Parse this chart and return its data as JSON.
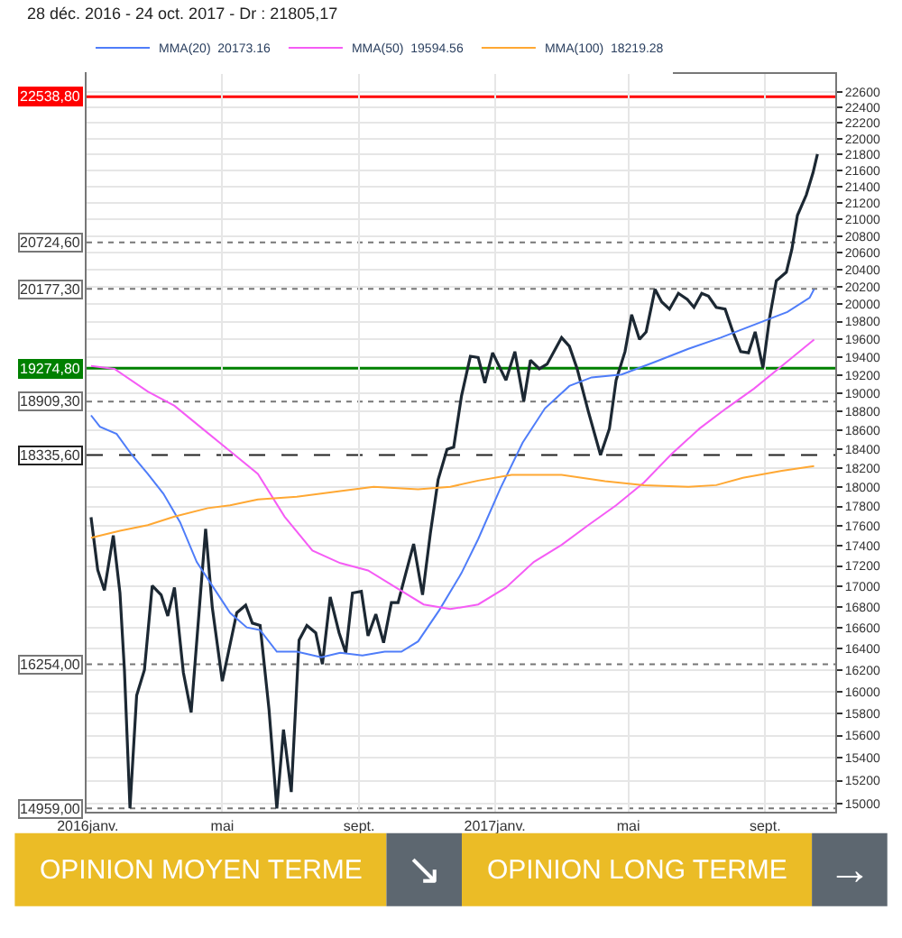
{
  "chart_data": {
    "type": "line",
    "title": "28 déc. 2016 - 24 oct. 2017 - Dr : 21805,17",
    "log": "y",
    "grid": true,
    "legend": "top left",
    "marker": "none",
    "line_style": "solid",
    "xlim": [
      "2015-12-31",
      "2017-11-03"
    ],
    "xticks": [
      {
        "value": "2016-01-01",
        "label": "2016janv."
      },
      {
        "value": "2016-05-01",
        "label": "mai"
      },
      {
        "value": "2016-09-01",
        "label": "sept."
      },
      {
        "value": "2017-01-01",
        "label": "2017janv."
      },
      {
        "value": "2017-05-01",
        "label": "mai"
      },
      {
        "value": "2017-09-01",
        "label": "sept."
      }
    ],
    "ylim": [
      14930,
      22835
    ],
    "yticks": [
      15000,
      15200,
      15400,
      15600,
      15800,
      16000,
      16200,
      16400,
      16600,
      16800,
      17000,
      17200,
      17400,
      17600,
      17800,
      18000,
      18200,
      18400,
      18600,
      18800,
      19000,
      19200,
      19400,
      19600,
      19800,
      20000,
      20200,
      20400,
      20600,
      20800,
      21000,
      21200,
      21400,
      21600,
      21800,
      22000,
      22200,
      22400,
      22600
    ],
    "series": [
      {
        "color": "#1c2833",
        "x": [
          "2016-01-04",
          "2016-01-10",
          "2016-01-16",
          "2016-01-24",
          "2016-01-30",
          "2016-02-03",
          "2016-02-08",
          "2016-02-14",
          "2016-02-21",
          "2016-02-28",
          "2016-03-07",
          "2016-03-13",
          "2016-03-19",
          "2016-03-27",
          "2016-04-03",
          "2016-04-16",
          "2016-04-22",
          "2016-05-01",
          "2016-05-14",
          "2016-05-22",
          "2016-05-28",
          "2016-06-04",
          "2016-06-12",
          "2016-06-19",
          "2016-06-25",
          "2016-07-02",
          "2016-07-09",
          "2016-07-16",
          "2016-07-24",
          "2016-07-30",
          "2016-08-06",
          "2016-08-14",
          "2016-08-20",
          "2016-08-26",
          "2016-09-03",
          "2016-09-09",
          "2016-09-16",
          "2016-09-23",
          "2016-09-30",
          "2016-10-06",
          "2016-10-13",
          "2016-10-20",
          "2016-10-28",
          "2016-11-04",
          "2016-11-11",
          "2016-11-19",
          "2016-11-25",
          "2016-12-02",
          "2016-12-10",
          "2016-12-17",
          "2016-12-23",
          "2016-12-30",
          "2017-01-11",
          "2017-01-19",
          "2017-01-27",
          "2017-02-02",
          "2017-02-10",
          "2017-02-17",
          "2017-03-02",
          "2017-03-09",
          "2017-03-16",
          "2017-03-26",
          "2017-04-06",
          "2017-04-14",
          "2017-04-20",
          "2017-04-28",
          "2017-05-04",
          "2017-05-11",
          "2017-05-17",
          "2017-05-25",
          "2017-05-31",
          "2017-06-07",
          "2017-06-15",
          "2017-06-23",
          "2017-06-29",
          "2017-07-06",
          "2017-07-12",
          "2017-07-19",
          "2017-07-27",
          "2017-08-03",
          "2017-08-10",
          "2017-08-17",
          "2017-08-23",
          "2017-08-30",
          "2017-09-05",
          "2017-09-11",
          "2017-09-20",
          "2017-09-25",
          "2017-09-30",
          "2017-10-08",
          "2017-10-14",
          "2017-10-18"
        ],
        "values": [
          17690,
          17161,
          16961,
          17504,
          16934,
          16201,
          14959,
          15965,
          16201,
          17006,
          16916,
          16712,
          16988,
          16176,
          15809,
          17571,
          16794,
          16096,
          16742,
          16816,
          16643,
          16620,
          15834,
          14959,
          15653,
          15101,
          16481,
          16620,
          16550,
          16255,
          16895,
          16550,
          16361,
          16934,
          16950,
          16521,
          16729,
          16456,
          16841,
          16841,
          17130,
          17420,
          16916,
          17524,
          18076,
          18394,
          18419,
          18969,
          19408,
          19395,
          19113,
          19447,
          19142,
          19460,
          18910,
          19365,
          19268,
          19321,
          19618,
          19521,
          19268,
          18801,
          18335,
          18617,
          19142,
          19460,
          19879,
          19598,
          19683,
          20172,
          20026,
          19943,
          20125,
          20055,
          19963,
          20125,
          20093,
          19963,
          19943,
          19683,
          19460,
          19447,
          19683,
          19282,
          19845,
          20271,
          20371,
          20641,
          21049,
          21299,
          21572,
          21805
        ]
      },
      {
        "name": "MMA(20)  20173.16",
        "color": "#4f7df9",
        "x": [
          "2016-01-04",
          "2016-01-12",
          "2016-01-27",
          "2016-02-09",
          "2016-02-24",
          "2016-03-09",
          "2016-03-24",
          "2016-04-08",
          "2016-04-23",
          "2016-05-08",
          "2016-05-23",
          "2016-06-04",
          "2016-06-19",
          "2016-07-07",
          "2016-07-29",
          "2016-08-15",
          "2016-09-04",
          "2016-09-24",
          "2016-10-09",
          "2016-10-24",
          "2016-11-12",
          "2016-12-02",
          "2016-12-17",
          "2017-01-06",
          "2017-01-26",
          "2017-02-15",
          "2017-03-09",
          "2017-03-29",
          "2017-04-25",
          "2017-05-25",
          "2017-06-24",
          "2017-07-23",
          "2017-08-12",
          "2017-09-01",
          "2017-09-21",
          "2017-10-11",
          "2017-10-15"
        ],
        "values": [
          18759,
          18637,
          18559,
          18347,
          18137,
          17932,
          17640,
          17240,
          16988,
          16742,
          16602,
          16577,
          16372,
          16372,
          16320,
          16361,
          16336,
          16372,
          16372,
          16469,
          16767,
          17130,
          17468,
          17988,
          18466,
          18834,
          19079,
          19174,
          19206,
          19345,
          19492,
          19618,
          19715,
          19812,
          19909,
          20075,
          20173
        ]
      },
      {
        "name": "MMA(50)  19594.56",
        "color": "#f55cf5",
        "x": [
          "2016-01-04",
          "2016-01-25",
          "2016-02-24",
          "2016-03-19",
          "2016-04-13",
          "2016-05-08",
          "2016-06-02",
          "2016-06-26",
          "2016-07-21",
          "2016-08-15",
          "2016-09-09",
          "2016-10-04",
          "2016-10-29",
          "2016-11-22",
          "2016-12-17",
          "2017-01-11",
          "2017-02-05",
          "2017-03-02",
          "2017-03-26",
          "2017-04-20",
          "2017-05-15",
          "2017-06-09",
          "2017-07-04",
          "2017-07-28",
          "2017-08-22",
          "2017-09-16",
          "2017-10-15"
        ],
        "values": [
          19300,
          19268,
          19018,
          18863,
          18617,
          18376,
          18137,
          17696,
          17353,
          17229,
          17156,
          16988,
          16823,
          16778,
          16823,
          16988,
          17240,
          17411,
          17610,
          17812,
          18047,
          18347,
          18617,
          18834,
          19050,
          19300,
          19595
        ]
      },
      {
        "name": "MMA(100)  18219.28",
        "color": "#ffa833",
        "x": [
          "2016-01-04",
          "2016-01-30",
          "2016-02-24",
          "2016-03-19",
          "2016-04-18",
          "2016-05-08",
          "2016-06-02",
          "2016-07-07",
          "2016-08-15",
          "2016-09-14",
          "2016-10-24",
          "2016-11-22",
          "2016-12-17",
          "2017-01-16",
          "2017-03-02",
          "2017-04-10",
          "2017-05-15",
          "2017-06-24",
          "2017-07-19",
          "2017-08-12",
          "2017-09-16",
          "2017-10-15"
        ],
        "values": [
          17481,
          17553,
          17610,
          17696,
          17783,
          17812,
          17871,
          17900,
          17959,
          18002,
          17977,
          18002,
          18067,
          18126,
          18126,
          18061,
          18020,
          18002,
          18020,
          18096,
          18169,
          18219
        ]
      }
    ],
    "ref_lines": [
      {
        "axis": "y",
        "value": 22538.8,
        "label": "22538,80",
        "color": "#ff0000",
        "line_style": "solid"
      },
      {
        "axis": "y",
        "value": 20724.6,
        "label": "20724,60",
        "color": "#777777",
        "line_style": "dotted"
      },
      {
        "axis": "y",
        "value": 20177.3,
        "label": "20177,30",
        "color": "#777777",
        "line_style": "dotted"
      },
      {
        "axis": "y",
        "value": 19274.8,
        "label": "19274,80",
        "color": "#008000",
        "line_style": "solid"
      },
      {
        "axis": "y",
        "value": 18909.3,
        "label": "18909,30",
        "color": "#777777",
        "line_style": "dotted"
      },
      {
        "axis": "y",
        "value": 18335.6,
        "label": "18335,60",
        "color": "#222222",
        "line_style": "dashed"
      },
      {
        "axis": "y",
        "value": 16254.0,
        "label": "16254,00",
        "color": "#777777",
        "line_style": "dotted"
      },
      {
        "axis": "y",
        "value": 14959.0,
        "label": "14959,00",
        "color": "#777777",
        "line_style": "dotted"
      }
    ],
    "annotations": [
      "OPINION MOYEN TERME",
      "↘",
      "OPINION LONG TERME",
      "→"
    ]
  }
}
